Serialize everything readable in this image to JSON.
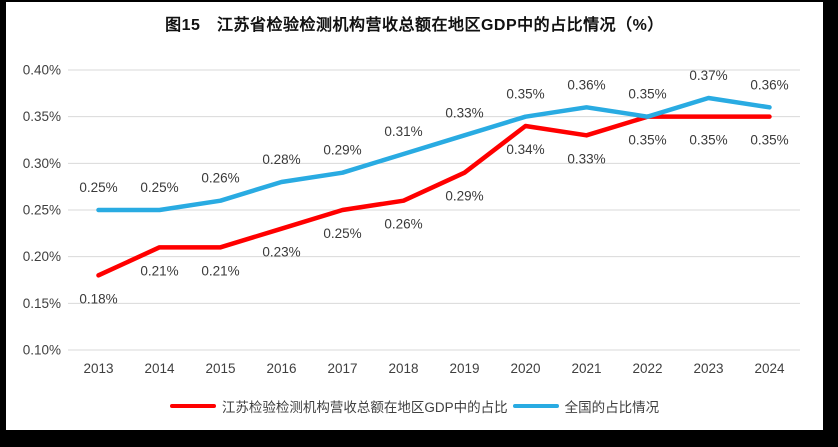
{
  "frame": {
    "outer_background": "#000000",
    "panel_background": "#FFFFFF"
  },
  "chart_data": {
    "type": "line",
    "title": "图15　江苏省检验检测机构营收总额在地区GDP中的占比情况（%）",
    "categories": [
      "2013",
      "2014",
      "2015",
      "2016",
      "2017",
      "2018",
      "2019",
      "2020",
      "2021",
      "2022",
      "2023",
      "2024"
    ],
    "series": [
      {
        "name": "江苏检验检测机构营收总额在地区GDP中的占比",
        "color": "#FF0000",
        "values": [
          0.18,
          0.21,
          0.21,
          0.23,
          0.25,
          0.26,
          0.29,
          0.34,
          0.33,
          0.35,
          0.35,
          0.35
        ],
        "point_labels": [
          "0.18%",
          "0.21%",
          "0.21%",
          "0.23%",
          "0.25%",
          "0.26%",
          "0.29%",
          "0.34%",
          "0.33%",
          "0.35%",
          "0.35%",
          "0.35%"
        ],
        "label_position": "below"
      },
      {
        "name": "全国的占比情况",
        "color": "#29ABE2",
        "values": [
          0.25,
          0.25,
          0.26,
          0.28,
          0.29,
          0.31,
          0.33,
          0.35,
          0.36,
          0.35,
          0.37,
          0.36
        ],
        "point_labels": [
          "0.25%",
          "0.25%",
          "0.26%",
          "0.28%",
          "0.29%",
          "0.31%",
          "0.33%",
          "0.35%",
          "0.36%",
          "0.35%",
          "0.37%",
          "0.36%"
        ],
        "label_position": "above"
      }
    ],
    "y_axis": {
      "min": 0.1,
      "max": 0.4,
      "step": 0.05,
      "tick_labels": [
        "0.10%",
        "0.15%",
        "0.20%",
        "0.25%",
        "0.30%",
        "0.35%",
        "0.40%"
      ]
    },
    "grid": true,
    "legend_position": "bottom",
    "styles": {
      "gridline_color": "#D9D9D9",
      "axis_text_color": "#3F3F3F",
      "data_label_color": "#3A3A3A",
      "title_color": "#111111"
    }
  }
}
